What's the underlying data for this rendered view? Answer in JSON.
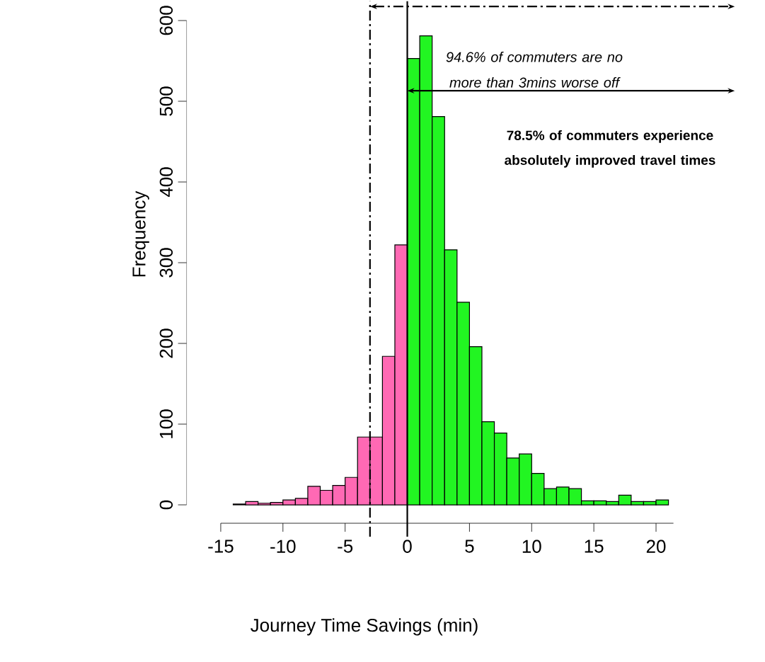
{
  "chart_data": {
    "type": "histogram",
    "xlabel": "Journey Time Savings (min)",
    "ylabel": "Frequency",
    "bins": [
      -14,
      -13,
      -12,
      -11,
      -10,
      -9,
      -8,
      -7,
      -6,
      -5,
      -4,
      -3,
      -2,
      -1,
      0,
      1,
      2,
      3,
      4,
      5,
      6,
      7,
      8,
      9,
      10,
      11,
      12,
      13,
      14,
      15,
      16,
      17,
      18,
      19,
      20,
      21
    ],
    "values": [
      1,
      4,
      2,
      3,
      6,
      8,
      23,
      18,
      24,
      34,
      84,
      84,
      184,
      322,
      553,
      581,
      481,
      316,
      251,
      196,
      103,
      89,
      58,
      63,
      39,
      20,
      22,
      20,
      5,
      5,
      4,
      12,
      4,
      4,
      6
    ],
    "colors": [
      "#ff69b4",
      "#ff69b4",
      "#ff69b4",
      "#ff69b4",
      "#ff69b4",
      "#ff69b4",
      "#ff69b4",
      "#ff69b4",
      "#ff69b4",
      "#ff69b4",
      "#ff69b4",
      "#ff69b4",
      "#ff69b4",
      "#ff69b4",
      "#22f522",
      "#22f522",
      "#22f522",
      "#22f522",
      "#22f522",
      "#22f522",
      "#22f522",
      "#22f522",
      "#22f522",
      "#22f522",
      "#22f522",
      "#22f522",
      "#22f522",
      "#22f522",
      "#22f522",
      "#22f522",
      "#22f522",
      "#22f522",
      "#22f522",
      "#22f522",
      "#22f522"
    ],
    "xlim": [
      -17.75,
      21.4
    ],
    "ylim": [
      0,
      600
    ],
    "xticks": [
      -15,
      -10,
      -5,
      0,
      5,
      10,
      15,
      20
    ],
    "yticks": [
      0,
      100,
      200,
      300,
      400,
      500,
      600
    ],
    "ref_lines": [
      {
        "axis": "x",
        "value": -3,
        "line_style": "dashdot"
      },
      {
        "axis": "x",
        "value": 0,
        "line_style": "solid"
      }
    ],
    "annotations": [
      "94.6% of commuters are no more than 3mins worse off",
      "78.5% of commuters experience absolutely improved travel times"
    ],
    "grid": false
  }
}
